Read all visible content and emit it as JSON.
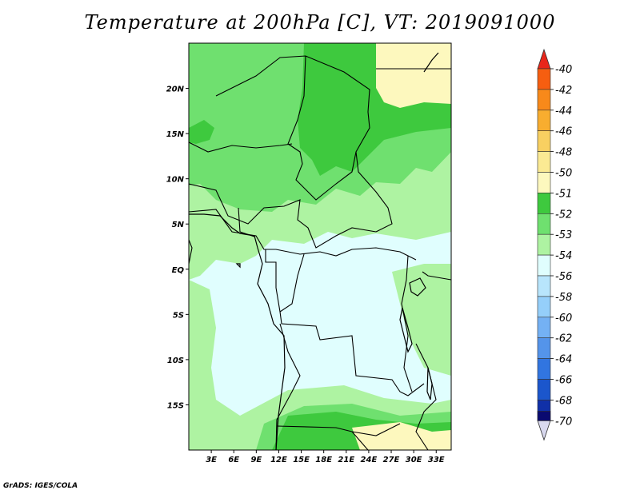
{
  "title": "Temperature at 200hPa [C], VT: 2019091000",
  "credit": "GrADS: IGES/COLA",
  "map": {
    "lon_range": [
      0,
      35
    ],
    "lat_range": [
      -20,
      25
    ],
    "lat_ticks": [
      {
        "value": 20,
        "label": "20N"
      },
      {
        "value": 15,
        "label": "15N"
      },
      {
        "value": 10,
        "label": "10N"
      },
      {
        "value": 5,
        "label": "5N"
      },
      {
        "value": 0,
        "label": "EQ"
      },
      {
        "value": -5,
        "label": "5S"
      },
      {
        "value": -10,
        "label": "10S"
      },
      {
        "value": -15,
        "label": "15S"
      }
    ],
    "lon_ticks": [
      {
        "value": 3,
        "label": "3E"
      },
      {
        "value": 6,
        "label": "6E"
      },
      {
        "value": 9,
        "label": "9E"
      },
      {
        "value": 12,
        "label": "12E"
      },
      {
        "value": 15,
        "label": "15E"
      },
      {
        "value": 18,
        "label": "18E"
      },
      {
        "value": 21,
        "label": "21E"
      },
      {
        "value": 24,
        "label": "24E"
      },
      {
        "value": 27,
        "label": "27E"
      },
      {
        "value": 30,
        "label": "30E"
      },
      {
        "value": 33,
        "label": "33E"
      }
    ]
  },
  "colorbar": {
    "levels": [
      {
        "label": "-40",
        "color": "#f4250f"
      },
      {
        "label": "-42",
        "color": "#f65e10"
      },
      {
        "label": "-44",
        "color": "#f8891a"
      },
      {
        "label": "-46",
        "color": "#f8ad2f"
      },
      {
        "label": "-48",
        "color": "#f8d061"
      },
      {
        "label": "-50",
        "color": "#fbea93"
      },
      {
        "label": "-51",
        "color": "#fdf8be"
      },
      {
        "label": "-52",
        "color": "#3ec93e"
      },
      {
        "label": "-53",
        "color": "#6fe06f"
      },
      {
        "label": "-54",
        "color": "#aef3a2"
      },
      {
        "label": "-56",
        "color": "#e0fefe"
      },
      {
        "label": "-58",
        "color": "#b8e5fc"
      },
      {
        "label": "-60",
        "color": "#95cffa"
      },
      {
        "label": "-62",
        "color": "#74b1f4"
      },
      {
        "label": "-64",
        "color": "#5494ea"
      },
      {
        "label": "-66",
        "color": "#3175e0"
      },
      {
        "label": "-68",
        "color": "#1b56cc"
      },
      {
        "label": "-70",
        "color": "#1030a8"
      }
    ],
    "top_color": "#e8261a",
    "bottom_cap_color": "#0a0a70",
    "bottom_tri_color": "#d8d8ee"
  },
  "palette": {
    "yellow": "#fdf8be",
    "green_dark": "#3ec93e",
    "green_mid": "#6fe06f",
    "green_light": "#aef3a2",
    "cyan_light": "#e0fefe"
  }
}
